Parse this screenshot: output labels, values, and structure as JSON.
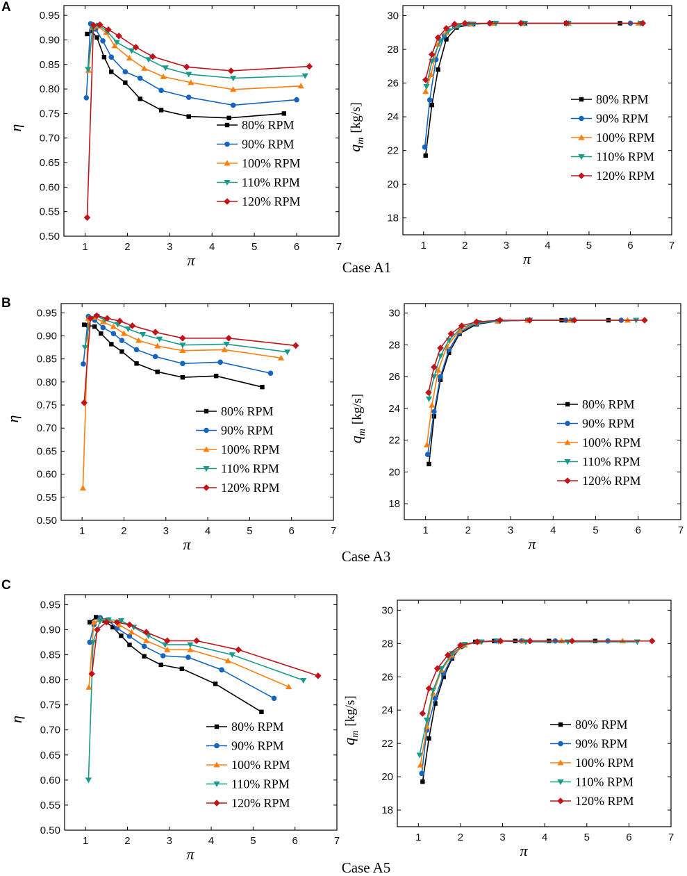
{
  "panels": [
    {
      "letter": "A",
      "case_label": "Case A1"
    },
    {
      "letter": "B",
      "case_label": "Case A3"
    },
    {
      "letter": "C",
      "case_label": "Case A5"
    }
  ],
  "series_styles": [
    {
      "name": "80% RPM",
      "color": "#000000",
      "marker": "square"
    },
    {
      "name": "90% RPM",
      "color": "#1565c0",
      "marker": "circle"
    },
    {
      "name": "100% RPM",
      "color": "#ff7f0e",
      "marker": "triangle-up"
    },
    {
      "name": "110% RPM",
      "color": "#1a9a8a",
      "marker": "triangle-down"
    },
    {
      "name": "120% RPM",
      "color": "#c0141a",
      "marker": "diamond"
    }
  ],
  "chart_data": [
    {
      "id": "A1-eta",
      "case": "Case A1",
      "type": "line",
      "xlabel": "π",
      "ylabel": "η",
      "ylabel_unit": "",
      "xlim": [
        0.5,
        7
      ],
      "ylim": [
        0.5,
        0.97
      ],
      "xticks": [
        "1",
        "2",
        "3",
        "4",
        "5",
        "6",
        "7"
      ],
      "yticks": [
        "0.50",
        "0.55",
        "0.60",
        "0.65",
        "0.70",
        "0.75",
        "0.80",
        "0.85",
        "0.90",
        "0.95"
      ],
      "legend_position": "lower-right",
      "series": [
        {
          "name": "80% RPM",
          "x": [
            1.05,
            1.15,
            1.28,
            1.45,
            1.62,
            1.95,
            2.3,
            2.8,
            3.45,
            4.4,
            5.7
          ],
          "y": [
            0.912,
            0.918,
            0.905,
            0.865,
            0.835,
            0.813,
            0.78,
            0.757,
            0.744,
            0.741,
            0.75
          ]
        },
        {
          "name": "90% RPM",
          "x": [
            1.03,
            1.13,
            1.25,
            1.42,
            1.62,
            1.95,
            2.3,
            2.8,
            3.45,
            4.5,
            6.0
          ],
          "y": [
            0.782,
            0.933,
            0.922,
            0.898,
            0.865,
            0.835,
            0.822,
            0.797,
            0.783,
            0.767,
            0.778
          ]
        },
        {
          "name": "100% RPM",
          "x": [
            1.08,
            1.18,
            1.3,
            1.5,
            1.7,
            2.05,
            2.4,
            2.85,
            3.5,
            4.5,
            6.1
          ],
          "y": [
            0.838,
            0.925,
            0.928,
            0.915,
            0.888,
            0.863,
            0.842,
            0.825,
            0.813,
            0.799,
            0.806
          ]
        },
        {
          "name": "110% RPM",
          "x": [
            1.07,
            1.18,
            1.32,
            1.52,
            1.75,
            2.1,
            2.5,
            2.9,
            3.45,
            4.5,
            6.2
          ],
          "y": [
            0.84,
            0.924,
            0.93,
            0.918,
            0.895,
            0.878,
            0.86,
            0.843,
            0.83,
            0.822,
            0.827
          ]
        },
        {
          "name": "120% RPM",
          "x": [
            1.05,
            1.2,
            1.35,
            1.55,
            1.8,
            2.2,
            2.6,
            3.4,
            4.45,
            6.3
          ],
          "y": [
            0.538,
            0.93,
            0.931,
            0.921,
            0.908,
            0.885,
            0.866,
            0.845,
            0.837,
            0.846
          ]
        }
      ]
    },
    {
      "id": "A1-qm",
      "case": "Case A1",
      "type": "line",
      "xlabel": "π",
      "ylabel": "q",
      "ylabel_sub": "m",
      "ylabel_unit": "[kg/s]",
      "xlim": [
        0.5,
        7
      ],
      "ylim": [
        17,
        30.6
      ],
      "xticks": [
        "1",
        "2",
        "3",
        "4",
        "5",
        "6",
        "7"
      ],
      "yticks": [
        "18",
        "20",
        "22",
        "24",
        "26",
        "28",
        "30"
      ],
      "legend_position": "center-right",
      "series": [
        {
          "name": "80% RPM",
          "x": [
            1.05,
            1.2,
            1.35,
            1.55,
            1.8,
            2.2,
            2.7,
            3.45,
            4.45,
            5.75
          ],
          "y": [
            21.7,
            24.7,
            26.8,
            28.6,
            29.3,
            29.5,
            29.55,
            29.55,
            29.55,
            29.55
          ]
        },
        {
          "name": "90% RPM",
          "x": [
            1.03,
            1.15,
            1.3,
            1.5,
            1.75,
            2.1,
            2.6,
            3.4,
            4.5,
            6.0
          ],
          "y": [
            22.2,
            25.0,
            27.4,
            28.8,
            29.35,
            29.5,
            29.55,
            29.55,
            29.55,
            29.55
          ]
        },
        {
          "name": "100% RPM",
          "x": [
            1.05,
            1.18,
            1.35,
            1.55,
            1.8,
            2.15,
            2.7,
            3.4,
            4.5,
            6.2
          ],
          "y": [
            25.5,
            26.5,
            28.3,
            29.0,
            29.4,
            29.5,
            29.55,
            29.55,
            29.55,
            29.55
          ]
        },
        {
          "name": "110% RPM",
          "x": [
            1.07,
            1.2,
            1.4,
            1.6,
            1.85,
            2.2,
            2.75,
            3.45,
            4.5,
            6.25
          ],
          "y": [
            25.8,
            27.3,
            28.5,
            29.1,
            29.4,
            29.5,
            29.55,
            29.55,
            29.55,
            29.55
          ]
        },
        {
          "name": "120% RPM",
          "x": [
            1.05,
            1.2,
            1.35,
            1.55,
            1.75,
            2.0,
            2.6,
            3.35,
            4.45,
            6.3
          ],
          "y": [
            26.2,
            27.7,
            28.7,
            29.25,
            29.5,
            29.55,
            29.55,
            29.55,
            29.55,
            29.55
          ]
        }
      ]
    },
    {
      "id": "A3-eta",
      "case": "Case A3",
      "type": "line",
      "xlabel": "π",
      "ylabel": "η",
      "ylabel_unit": "",
      "xlim": [
        0.5,
        7
      ],
      "ylim": [
        0.5,
        0.97
      ],
      "xticks": [
        "1",
        "2",
        "3",
        "4",
        "5",
        "6",
        "7"
      ],
      "yticks": [
        "0.50",
        "0.55",
        "0.60",
        "0.65",
        "0.70",
        "0.75",
        "0.80",
        "0.85",
        "0.90",
        "0.95"
      ],
      "legend_position": "lower-right",
      "series": [
        {
          "name": "80% RPM",
          "x": [
            1.05,
            1.15,
            1.3,
            1.45,
            1.7,
            1.95,
            2.3,
            2.8,
            3.4,
            4.2,
            5.3
          ],
          "y": [
            0.924,
            0.923,
            0.92,
            0.905,
            0.882,
            0.866,
            0.84,
            0.822,
            0.81,
            0.813,
            0.789
          ]
        },
        {
          "name": "90% RPM",
          "x": [
            1.03,
            1.15,
            1.3,
            1.5,
            1.75,
            1.95,
            2.3,
            2.75,
            3.4,
            4.3,
            5.5
          ],
          "y": [
            0.839,
            0.942,
            0.934,
            0.918,
            0.905,
            0.89,
            0.87,
            0.855,
            0.84,
            0.843,
            0.819
          ]
        },
        {
          "name": "100% RPM",
          "x": [
            1.02,
            1.15,
            1.3,
            1.5,
            1.75,
            2.0,
            2.35,
            2.8,
            3.4,
            4.4,
            5.75
          ],
          "y": [
            0.57,
            0.938,
            0.94,
            0.93,
            0.92,
            0.905,
            0.89,
            0.878,
            0.868,
            0.87,
            0.852
          ]
        },
        {
          "name": "110% RPM",
          "x": [
            1.07,
            1.2,
            1.35,
            1.55,
            1.85,
            2.1,
            2.45,
            2.85,
            3.4,
            4.45,
            5.9
          ],
          "y": [
            0.875,
            0.938,
            0.942,
            0.935,
            0.925,
            0.915,
            0.903,
            0.893,
            0.88,
            0.882,
            0.865
          ]
        },
        {
          "name": "120% RPM",
          "x": [
            1.05,
            1.2,
            1.35,
            1.6,
            1.9,
            2.2,
            2.75,
            3.4,
            4.5,
            6.1
          ],
          "y": [
            0.755,
            0.938,
            0.944,
            0.938,
            0.932,
            0.922,
            0.908,
            0.895,
            0.895,
            0.879
          ]
        }
      ]
    },
    {
      "id": "A3-qm",
      "case": "Case A3",
      "type": "line",
      "xlabel": "π",
      "ylabel": "q",
      "ylabel_sub": "m",
      "ylabel_unit": "[kg/s]",
      "xlim": [
        0.5,
        7
      ],
      "ylim": [
        17,
        30.6
      ],
      "xticks": [
        "1",
        "2",
        "3",
        "4",
        "5",
        "6",
        "7"
      ],
      "yticks": [
        "18",
        "20",
        "22",
        "24",
        "26",
        "28",
        "30"
      ],
      "legend_position": "center-right",
      "series": [
        {
          "name": "80% RPM",
          "x": [
            1.08,
            1.2,
            1.35,
            1.55,
            1.8,
            2.2,
            2.7,
            3.4,
            4.2,
            5.3
          ],
          "y": [
            20.5,
            23.5,
            25.8,
            27.5,
            28.7,
            29.3,
            29.5,
            29.55,
            29.55,
            29.55
          ]
        },
        {
          "name": "90% RPM",
          "x": [
            1.05,
            1.2,
            1.35,
            1.55,
            1.8,
            2.2,
            2.7,
            3.4,
            4.3,
            5.6
          ],
          "y": [
            21.1,
            23.8,
            26.0,
            27.7,
            28.8,
            29.35,
            29.5,
            29.55,
            29.55,
            29.55
          ]
        },
        {
          "name": "100% RPM",
          "x": [
            1.03,
            1.15,
            1.3,
            1.5,
            1.8,
            2.2,
            2.7,
            3.4,
            4.4,
            5.75
          ],
          "y": [
            21.7,
            24.2,
            26.4,
            27.9,
            28.9,
            29.4,
            29.5,
            29.55,
            29.55,
            29.55
          ]
        },
        {
          "name": "110% RPM",
          "x": [
            1.08,
            1.2,
            1.35,
            1.55,
            1.85,
            2.25,
            2.75,
            3.45,
            4.45,
            5.95
          ],
          "y": [
            24.6,
            26.0,
            27.3,
            28.3,
            29.1,
            29.4,
            29.5,
            29.55,
            29.55,
            29.55
          ]
        },
        {
          "name": "120% RPM",
          "x": [
            1.07,
            1.2,
            1.35,
            1.6,
            1.85,
            2.2,
            2.75,
            3.45,
            4.5,
            6.15
          ],
          "y": [
            25.0,
            26.6,
            27.8,
            28.7,
            29.2,
            29.45,
            29.55,
            29.55,
            29.55,
            29.55
          ]
        }
      ]
    },
    {
      "id": "A5-eta",
      "case": "Case A5",
      "type": "line",
      "xlabel": "π",
      "ylabel": "η",
      "ylabel_unit": "",
      "xlim": [
        0.5,
        7
      ],
      "ylim": [
        0.5,
        0.97
      ],
      "xticks": [
        "1",
        "2",
        "3",
        "4",
        "5",
        "6",
        "7"
      ],
      "yticks": [
        "0.50",
        "0.55",
        "0.60",
        "0.65",
        "0.70",
        "0.75",
        "0.80",
        "0.85",
        "0.90",
        "0.95"
      ],
      "legend_position": "lower-right",
      "series": [
        {
          "name": "80% RPM",
          "x": [
            1.1,
            1.25,
            1.45,
            1.65,
            1.85,
            2.05,
            2.4,
            2.8,
            3.3,
            4.1,
            5.2
          ],
          "y": [
            0.915,
            0.925,
            0.918,
            0.905,
            0.888,
            0.87,
            0.847,
            0.83,
            0.822,
            0.792,
            0.736
          ]
        },
        {
          "name": "90% RPM",
          "x": [
            1.1,
            1.2,
            1.35,
            1.55,
            1.75,
            2.05,
            2.4,
            2.85,
            3.45,
            4.25,
            5.5
          ],
          "y": [
            0.875,
            0.91,
            0.924,
            0.918,
            0.903,
            0.887,
            0.867,
            0.848,
            0.845,
            0.82,
            0.763
          ]
        },
        {
          "name": "100% RPM",
          "x": [
            1.08,
            1.2,
            1.35,
            1.55,
            1.8,
            2.1,
            2.45,
            2.95,
            3.5,
            4.4,
            5.85
          ],
          "y": [
            0.785,
            0.915,
            0.92,
            0.92,
            0.91,
            0.895,
            0.878,
            0.86,
            0.86,
            0.838,
            0.786
          ]
        },
        {
          "name": "110% RPM",
          "x": [
            1.07,
            1.18,
            1.35,
            1.55,
            1.85,
            2.15,
            2.5,
            2.9,
            3.5,
            4.5,
            6.2
          ],
          "y": [
            0.6,
            0.875,
            0.918,
            0.92,
            0.918,
            0.905,
            0.888,
            0.87,
            0.87,
            0.85,
            0.799
          ]
        },
        {
          "name": "120% RPM",
          "x": [
            1.15,
            1.28,
            1.5,
            1.75,
            2.05,
            2.45,
            2.95,
            3.65,
            4.65,
            6.55
          ],
          "y": [
            0.812,
            0.9,
            0.915,
            0.915,
            0.91,
            0.895,
            0.878,
            0.878,
            0.86,
            0.808
          ]
        }
      ]
    },
    {
      "id": "A5-qm",
      "case": "Case A5",
      "type": "line",
      "xlabel": "π",
      "ylabel": "q",
      "ylabel_sub": "m",
      "ylabel_unit": "[kg/s]",
      "xlim": [
        0.5,
        7
      ],
      "ylim": [
        17,
        30.6
      ],
      "xticks": [
        "1",
        "2",
        "3",
        "4",
        "5",
        "6",
        "7"
      ],
      "yticks": [
        "18",
        "20",
        "22",
        "24",
        "26",
        "28",
        "30"
      ],
      "legend_position": "lower-right",
      "series": [
        {
          "name": "80% RPM",
          "x": [
            1.1,
            1.25,
            1.4,
            1.6,
            1.8,
            2.0,
            2.35,
            2.8,
            3.3,
            4.1,
            5.2
          ],
          "y": [
            19.7,
            22.3,
            24.4,
            26.0,
            27.1,
            27.8,
            28.1,
            28.15,
            28.15,
            28.15,
            28.15
          ]
        },
        {
          "name": "90% RPM",
          "x": [
            1.08,
            1.2,
            1.4,
            1.6,
            1.8,
            2.05,
            2.4,
            2.85,
            3.45,
            4.25,
            5.5
          ],
          "y": [
            20.2,
            22.8,
            24.7,
            26.2,
            27.2,
            27.85,
            28.1,
            28.15,
            28.15,
            28.15,
            28.15
          ]
        },
        {
          "name": "100% RPM",
          "x": [
            1.05,
            1.2,
            1.35,
            1.55,
            1.8,
            2.1,
            2.45,
            2.95,
            3.5,
            4.4,
            5.85
          ],
          "y": [
            20.7,
            23.0,
            25.0,
            26.4,
            27.3,
            27.9,
            28.1,
            28.15,
            28.15,
            28.15,
            28.15
          ]
        },
        {
          "name": "110% RPM",
          "x": [
            1.03,
            1.2,
            1.35,
            1.55,
            1.8,
            2.1,
            2.5,
            2.9,
            3.55,
            4.55,
            6.2
          ],
          "y": [
            21.3,
            23.4,
            25.2,
            26.5,
            27.4,
            27.95,
            28.1,
            28.15,
            28.1,
            28.1,
            28.1
          ]
        },
        {
          "name": "120% RPM",
          "x": [
            1.1,
            1.25,
            1.45,
            1.7,
            2.0,
            2.4,
            2.95,
            3.65,
            4.65,
            6.55
          ],
          "y": [
            23.8,
            25.3,
            26.5,
            27.3,
            27.9,
            28.1,
            28.15,
            28.15,
            28.15,
            28.15
          ]
        }
      ]
    }
  ]
}
